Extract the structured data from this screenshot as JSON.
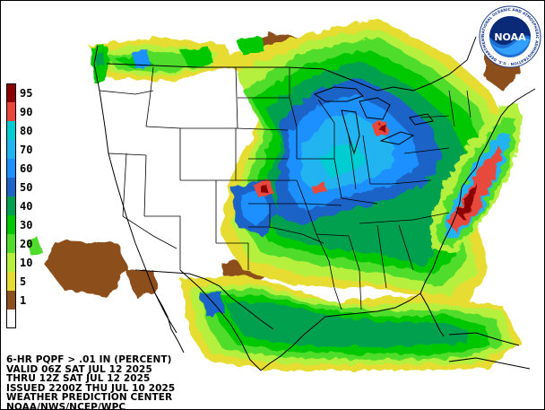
{
  "legend": {
    "items": [
      {
        "label": "95",
        "color": "#8b0000"
      },
      {
        "label": "90",
        "color": "#e8483c"
      },
      {
        "label": "80",
        "color": "#00cdd2"
      },
      {
        "label": "70",
        "color": "#22b4f0"
      },
      {
        "label": "60",
        "color": "#1e90ff"
      },
      {
        "label": "50",
        "color": "#1e64c8"
      },
      {
        "label": "40",
        "color": "#00a050"
      },
      {
        "label": "30",
        "color": "#00c800"
      },
      {
        "label": "20",
        "color": "#4fdc2c"
      },
      {
        "label": "10",
        "color": "#b4f03c"
      },
      {
        "label": "5",
        "color": "#e6dc32"
      },
      {
        "label": "1",
        "color": "#8c501e"
      },
      {
        "label": "",
        "color": "#ffffff"
      }
    ]
  },
  "info": {
    "line1": "6-HR PQPF > .01 IN (PERCENT)",
    "line2": "VALID 06Z SAT JUL 12 2025",
    "line3": "THRU 12Z SAT JUL 12 2025",
    "line4": "ISSUED 2200Z THU JUL 10 2025",
    "line5": "WEATHER PREDICTION CENTER",
    "line6": "NOAA/NWS/NCEP/WPC"
  },
  "logo": {
    "text": "NOAA",
    "ring_text": "NATIONAL OCEANIC AND ATMOSPHERIC ADMINISTRATION · U.S. DEPARTMENT OF COMMERCE ·"
  }
}
